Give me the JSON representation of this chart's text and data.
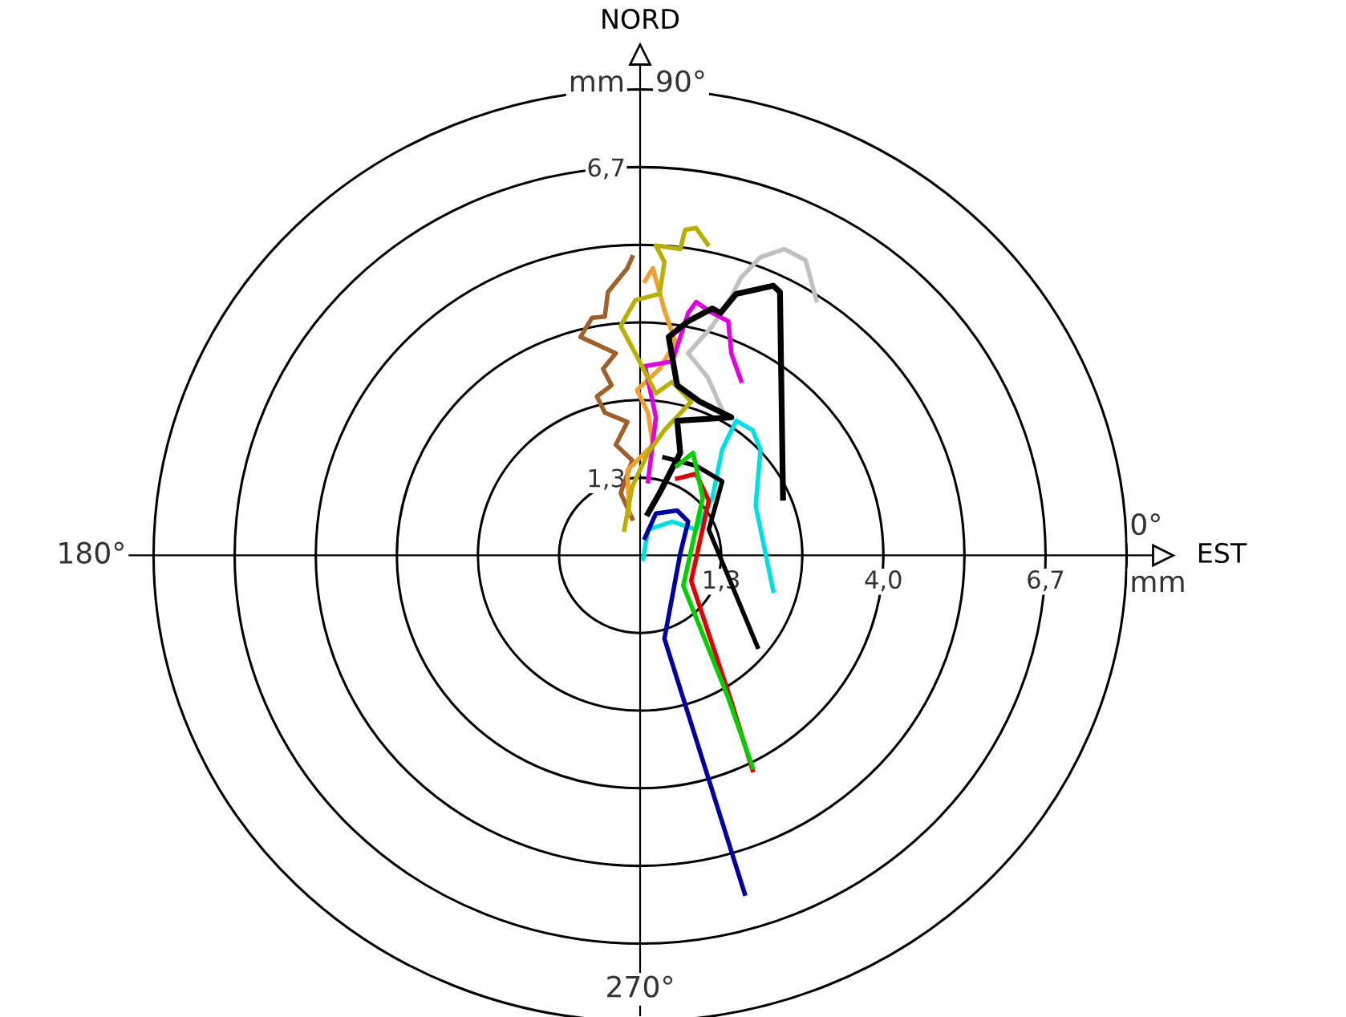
{
  "chart_data": {
    "type": "line",
    "xlabel": "EST",
    "ylabel": "NORD",
    "annotations": [
      "mm",
      "90°",
      "0°",
      "mm",
      "180°",
      "270°"
    ],
    "xlim": [
      -8.6,
      8.6
    ],
    "ylim": [
      -7.9,
      8.6
    ],
    "xticks": [
      {
        "value": 1.333,
        "label": "1,3"
      },
      {
        "value": 2.667,
        "label": null
      },
      {
        "value": 4.0,
        "label": "4,0"
      },
      {
        "value": 5.333,
        "label": null
      },
      {
        "value": 6.667,
        "label": "6,7"
      },
      {
        "value": 8.0,
        "label": null
      }
    ],
    "yticks": [
      {
        "value": 1.333,
        "label": "1,3"
      },
      {
        "value": 2.667,
        "label": null
      },
      {
        "value": 4.0,
        "label": null
      },
      {
        "value": 5.333,
        "label": null
      },
      {
        "value": 6.667,
        "label": "6,7"
      },
      {
        "value": 8.0,
        "label": null
      }
    ],
    "marker": "none",
    "line_style": "solid",
    "series": [
      {
        "color": "#c0c0c0",
        "x": [
          1.37,
          1.11,
          0.79,
          1.19,
          1.5,
          1.66,
          1.98,
          2.37,
          2.72,
          2.9
        ],
        "values": [
          2.45,
          3.06,
          3.47,
          3.94,
          4.44,
          4.77,
          5.12,
          5.26,
          5.07,
          4.38
        ]
      },
      {
        "color": "#a0602a",
        "x": [
          -0.13,
          -0.32,
          -0.13,
          -0.4,
          -0.21,
          -0.58,
          -0.71,
          -0.47,
          -0.61,
          -0.4,
          -0.98,
          -0.79,
          -0.58,
          -0.53,
          -0.21,
          -0.13
        ],
        "values": [
          0.63,
          1.07,
          1.63,
          1.9,
          2.29,
          2.45,
          2.73,
          2.92,
          3.2,
          3.47,
          3.75,
          4.08,
          4.1,
          4.52,
          4.93,
          5.12
        ]
      },
      {
        "color": "#f0a030",
        "x": [
          -0.18,
          -0.21,
          0.21,
          0.13,
          -0.05,
          0.32,
          0.58,
          0.4,
          0.21,
          0.08
        ],
        "values": [
          0.72,
          1.46,
          1.9,
          2.45,
          2.84,
          3.2,
          3.66,
          4.21,
          4.93,
          4.71
        ]
      },
      {
        "color": "#e000e0",
        "x": [
          0.13,
          0.26,
          0.08,
          0.53,
          0.79,
          0.92,
          1.19,
          1.45,
          1.5,
          1.66
        ],
        "values": [
          1.27,
          2.37,
          3.25,
          3.33,
          4.16,
          4.35,
          4.16,
          4.02,
          3.47,
          3.0
        ]
      },
      {
        "color": "#b8b000",
        "x": [
          -0.26,
          -0.13,
          0.13,
          0.4,
          0.84,
          0.53,
          0.26,
          -0.08,
          -0.32,
          -0.08,
          0.32,
          0.4,
          0.26,
          0.66,
          0.74,
          0.92,
          1.11
        ],
        "values": [
          0.44,
          1.18,
          1.76,
          2.15,
          2.64,
          2.98,
          2.78,
          3.47,
          3.94,
          4.38,
          4.49,
          5.04,
          5.32,
          5.26,
          5.59,
          5.62,
          5.34
        ]
      },
      {
        "color": "#000000",
        "x": [
          0.13,
          0.32,
          0.66,
          0.61,
          1.5,
          0.98,
          0.61,
          0.47,
          0.79,
          1.19,
          1.32,
          1.58,
          2.19,
          2.3,
          2.35
        ],
        "values": [
          0.72,
          1.07,
          1.76,
          2.31,
          2.37,
          2.64,
          2.92,
          3.75,
          4.02,
          4.24,
          4.16,
          4.49,
          4.63,
          4.52,
          0.99
        ]
      },
      {
        "color": "#00e0e0",
        "x": [
          0.05,
          0.13,
          0.53,
          0.92,
          1.19,
          1.35,
          1.58,
          1.85,
          1.98,
          1.9,
          2.19
        ],
        "values": [
          -0.06,
          0.44,
          0.58,
          0.44,
          0.99,
          1.82,
          2.31,
          2.15,
          1.82,
          0.85,
          -0.61
        ]
      },
      {
        "color": "#000000",
        "x": [
          0.4,
          0.92,
          1.35,
          1.13,
          1.93
        ],
        "values": [
          1.68,
          1.54,
          1.27,
          0.44,
          -1.57
        ]
      },
      {
        "color": "#e00000",
        "x": [
          0.61,
          0.92,
          1.13,
          0.84,
          1.5,
          1.85
        ],
        "values": [
          1.32,
          1.4,
          0.94,
          -0.44,
          -2.51,
          -3.69
        ]
      },
      {
        "color": "#00d000",
        "x": [
          0.61,
          0.87,
          1.03,
          0.71,
          1.45,
          1.85
        ],
        "values": [
          1.54,
          1.76,
          0.99,
          -0.52,
          -2.45,
          -3.64
        ]
      },
      {
        "color": "#0000a0",
        "x": [
          0.08,
          0.26,
          0.61,
          0.79,
          0.66,
          0.4,
          1.72
        ],
        "values": [
          0.3,
          0.72,
          0.77,
          0.58,
          0.03,
          -1.43,
          -5.81
        ]
      }
    ]
  }
}
